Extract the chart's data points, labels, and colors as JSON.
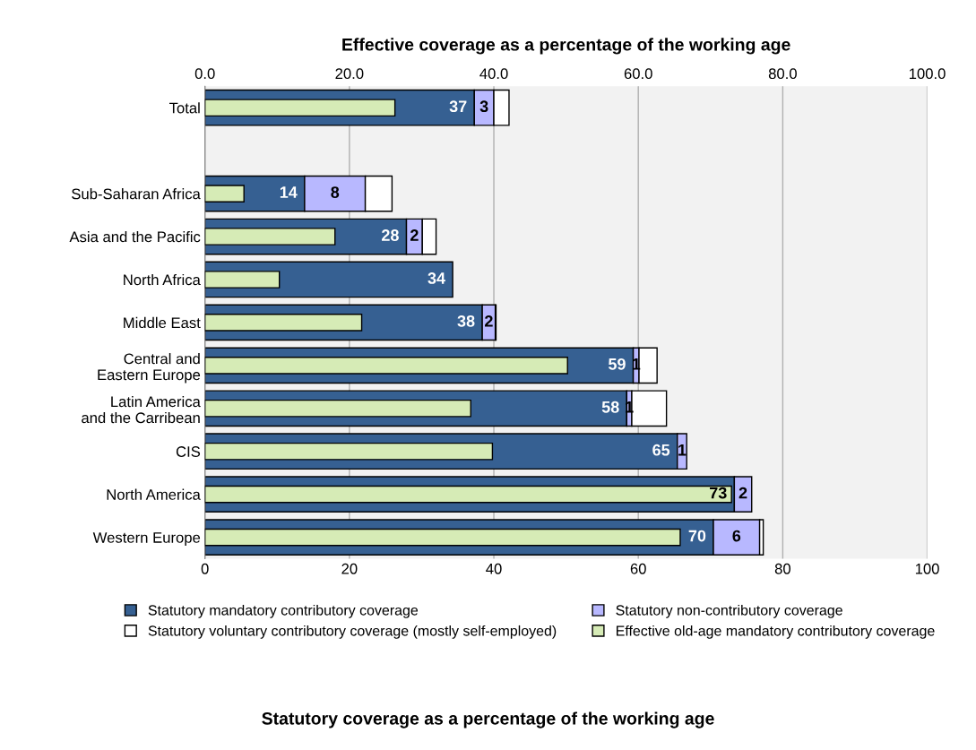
{
  "chart_data": [
    {
      "type": "bar",
      "orientation": "horizontal",
      "stacked": true,
      "categories": [
        "Total",
        null,
        "Sub-Saharan Africa",
        "Asia and the Pacific",
        "North Africa",
        "Middle East",
        "Central and\nEastern Europe",
        "Latin America\nand the Carribean",
        "CIS",
        "North America",
        "Western Europe"
      ],
      "series": [
        {
          "name": "Statutory mandatory contributory coverage",
          "color": "#366092",
          "values": [
            37.3,
            null,
            13.8,
            27.9,
            34.3,
            38.4,
            59.3,
            58.4,
            65.4,
            73.3,
            70.4
          ],
          "value_labels": [
            "37",
            null,
            "14",
            "28",
            "34",
            "38",
            "59",
            "58",
            "65",
            "73",
            "70"
          ]
        },
        {
          "name": "Statutory non-contributory coverage",
          "color": "#b8b8ff",
          "values": [
            2.7,
            null,
            8.4,
            2.2,
            null,
            1.8,
            0.8,
            0.7,
            1.3,
            2.4,
            6.4
          ],
          "value_labels": [
            "3",
            null,
            "8",
            "2",
            null,
            "2",
            "1",
            "1",
            "1",
            "2",
            "6"
          ]
        },
        {
          "name": "Statutory voluntary contributory coverage (mostly self-employed)",
          "color": "#ffffff",
          "values": [
            2.1,
            null,
            3.7,
            1.9,
            null,
            0.1,
            2.5,
            4.8,
            null,
            null,
            0.5
          ]
        }
      ],
      "xlim": [
        0,
        100
      ],
      "xticks": [
        0,
        20,
        40,
        60,
        80,
        100
      ],
      "annotations": [
        "Statutory coverage as a percentage of the working age"
      ],
      "grid": "x",
      "legend": "bottom"
    },
    {
      "type": "bar",
      "orientation": "horizontal",
      "tick_labels": "x",
      "categories": [
        null,
        null,
        null,
        null,
        null,
        null,
        null,
        null,
        null,
        null,
        null
      ],
      "series": [
        {
          "name": "Effective old-age mandatory contributory coverage",
          "color": "#d6ebb6",
          "values": [
            26.3,
            null,
            5.4,
            18.0,
            10.3,
            21.7,
            50.2,
            36.8,
            39.8,
            72.9,
            65.8
          ]
        }
      ],
      "xlim": [
        0,
        100
      ],
      "xticks": [
        {
          "value": 0,
          "label": "0.0"
        },
        {
          "value": 20,
          "label": "20.0"
        },
        {
          "value": 40,
          "label": "40.0"
        },
        {
          "value": 60,
          "label": "60.0"
        },
        {
          "value": 80,
          "label": "80.0"
        },
        {
          "value": 100,
          "label": "100.0"
        }
      ],
      "xlabel": "Effective coverage as a percentage of the working age",
      "legend": "bottom"
    }
  ]
}
